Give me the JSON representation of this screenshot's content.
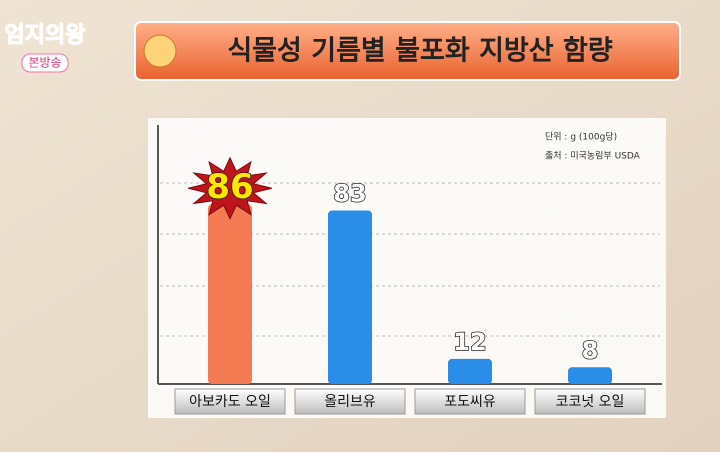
{
  "logo": {
    "name": "엄지의왕",
    "sub": "본방송"
  },
  "chart_data": {
    "type": "bar",
    "title": "식물성 기름별 불포화 지방산 함량",
    "notes": [
      "단위 : g (100g당)",
      "출처 : 미국농림부 USDA"
    ],
    "categories": [
      "아보카도 오일",
      "올리브유",
      "포도씨유",
      "코코넛 오일"
    ],
    "values": [
      86,
      83,
      12,
      8
    ],
    "colors": [
      "#f47a52",
      "#2a8ee8",
      "#2a8ee8",
      "#2a8ee8"
    ],
    "ylim": [
      0,
      100
    ]
  }
}
